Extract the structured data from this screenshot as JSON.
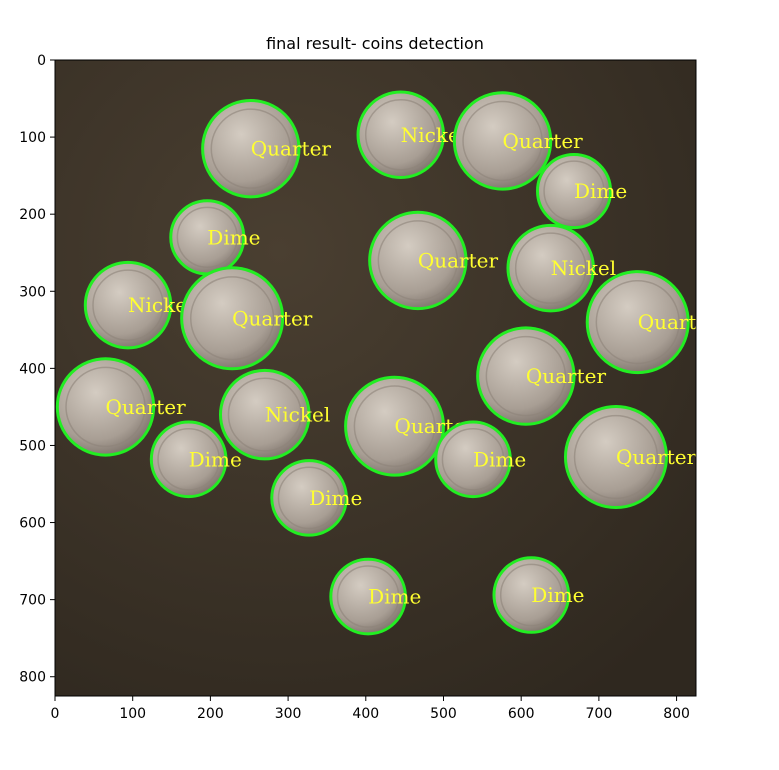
{
  "chart_data": {
    "type": "image",
    "title": "final result- coins detection",
    "xlabel": "",
    "ylabel": "",
    "xlim": [
      0,
      825
    ],
    "ylim": [
      825,
      0
    ],
    "xticks": [
      0,
      100,
      200,
      300,
      400,
      500,
      600,
      700,
      800
    ],
    "yticks": [
      0,
      100,
      200,
      300,
      400,
      500,
      600,
      700,
      800
    ],
    "grid": false,
    "colors": {
      "circle": "#22ee22",
      "label": "#ffff30",
      "background": "#3e3427",
      "coin": "#b5aba1"
    },
    "coins": [
      {
        "x": 252,
        "y": 115,
        "r": 62,
        "label": "Quarter"
      },
      {
        "x": 445,
        "y": 97,
        "r": 55,
        "label": "Nickel"
      },
      {
        "x": 576,
        "y": 105,
        "r": 62,
        "label": "Quarter"
      },
      {
        "x": 668,
        "y": 170,
        "r": 47,
        "label": "Dime"
      },
      {
        "x": 196,
        "y": 230,
        "r": 47,
        "label": "Dime"
      },
      {
        "x": 467,
        "y": 260,
        "r": 62,
        "label": "Quarter"
      },
      {
        "x": 638,
        "y": 270,
        "r": 55,
        "label": "Nickel"
      },
      {
        "x": 94,
        "y": 318,
        "r": 55,
        "label": "Nickel"
      },
      {
        "x": 228,
        "y": 335,
        "r": 65,
        "label": "Quarter"
      },
      {
        "x": 750,
        "y": 340,
        "r": 65,
        "label": "Quarter"
      },
      {
        "x": 606,
        "y": 410,
        "r": 62,
        "label": "Quarter"
      },
      {
        "x": 65,
        "y": 450,
        "r": 62,
        "label": "Quarter"
      },
      {
        "x": 270,
        "y": 460,
        "r": 57,
        "label": "Nickel"
      },
      {
        "x": 437,
        "y": 475,
        "r": 63,
        "label": "Quarter"
      },
      {
        "x": 172,
        "y": 518,
        "r": 48,
        "label": "Dime"
      },
      {
        "x": 538,
        "y": 518,
        "r": 48,
        "label": "Dime"
      },
      {
        "x": 722,
        "y": 515,
        "r": 65,
        "label": "Quarter"
      },
      {
        "x": 327,
        "y": 568,
        "r": 48,
        "label": "Dime"
      },
      {
        "x": 403,
        "y": 696,
        "r": 48,
        "label": "Dime"
      },
      {
        "x": 613,
        "y": 694,
        "r": 48,
        "label": "Dime"
      }
    ]
  }
}
